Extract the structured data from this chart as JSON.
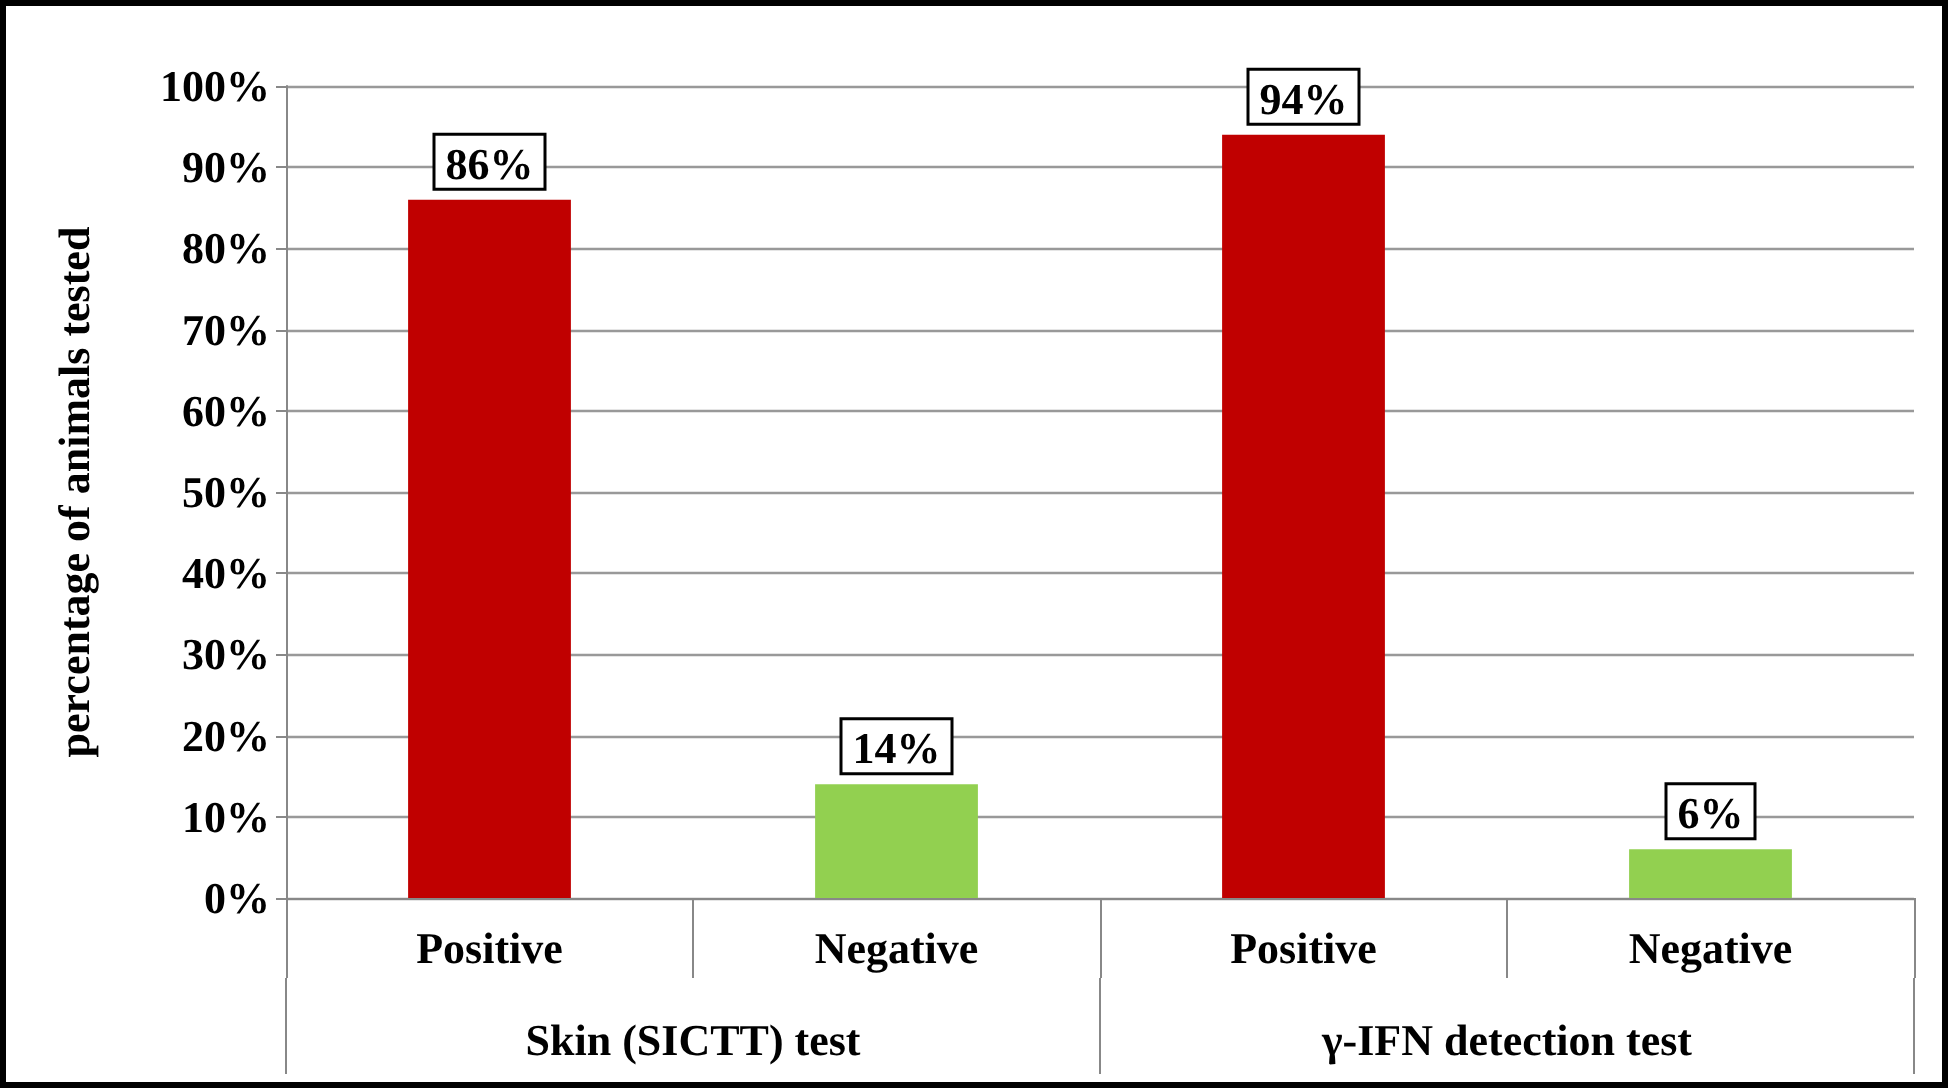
{
  "chart_data": {
    "type": "bar",
    "ylabel": "percentage of animals tested",
    "categories": [
      "Positive",
      "Negative",
      "Positive",
      "Negative"
    ],
    "values": [
      86,
      14,
      94,
      6
    ],
    "colors": [
      "#c00000",
      "#92d050",
      "#c00000",
      "#92d050"
    ],
    "value_labels": [
      "86%",
      "14%",
      "94%",
      "6%"
    ],
    "ylim": [
      0,
      100
    ],
    "yticks": [
      {
        "value": 0,
        "label": "0%"
      },
      {
        "value": 10,
        "label": "10%"
      },
      {
        "value": 20,
        "label": "20%"
      },
      {
        "value": 30,
        "label": "30%"
      },
      {
        "value": 40,
        "label": "40%"
      },
      {
        "value": 50,
        "label": "50%"
      },
      {
        "value": 60,
        "label": "60%"
      },
      {
        "value": 70,
        "label": "70%"
      },
      {
        "value": 80,
        "label": "80%"
      },
      {
        "value": 90,
        "label": "90%"
      },
      {
        "value": 100,
        "label": "100%"
      }
    ],
    "annotations": [
      "Skin (SICTT) test",
      "γ-IFN detection test"
    ],
    "grid": "y"
  }
}
